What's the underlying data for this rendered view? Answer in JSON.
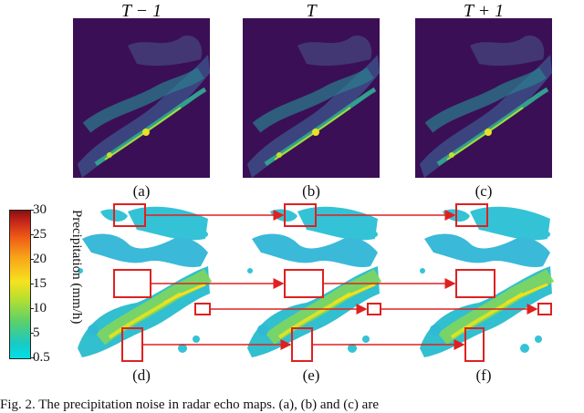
{
  "frames": {
    "top_titles": [
      "T − 1",
      "T",
      "T + 1"
    ],
    "labels": [
      "(a)",
      "(b)",
      "(c)",
      "(d)",
      "(e)",
      "(f)"
    ]
  },
  "colorbar": {
    "label": "Precipitation (mm/h)",
    "ticks": [
      "30",
      "25",
      "20",
      "15",
      "10",
      "5",
      "0.5"
    ]
  },
  "caption": "Fig. 2.   The precipitation noise in radar echo maps. (a), (b) and (c) are",
  "colors": {
    "radar_background": "#3b0f55",
    "echo_light": "#34c3d6",
    "echo_mid": "#7fd65c",
    "echo_core": "#f4e01c",
    "box": "#e02020"
  }
}
